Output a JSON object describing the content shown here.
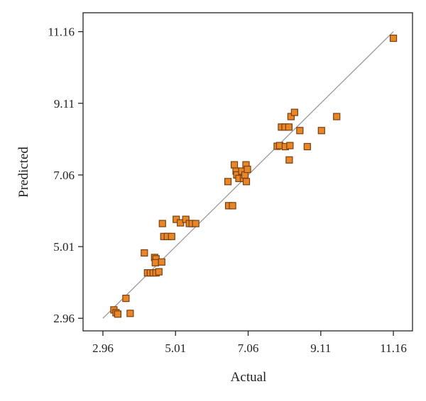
{
  "chart_data": {
    "type": "scatter",
    "xlabel": "Actual",
    "ylabel": "Predicted",
    "xlim": [
      2.4,
      11.7
    ],
    "ylim": [
      2.6,
      11.7
    ],
    "xticks": [
      "2.96",
      "5.01",
      "7.06",
      "9.11",
      "11.16"
    ],
    "yticks": [
      "2.96",
      "5.01",
      "7.06",
      "9.11",
      "11.16"
    ],
    "grid": false,
    "fit_line": {
      "x": [
        2.96,
        11.16
      ],
      "y": [
        2.96,
        11.16
      ]
    },
    "points": [
      {
        "x": 3.27,
        "y": 3.2
      },
      {
        "x": 3.33,
        "y": 3.12
      },
      {
        "x": 3.38,
        "y": 3.08
      },
      {
        "x": 3.61,
        "y": 3.53
      },
      {
        "x": 3.73,
        "y": 3.1
      },
      {
        "x": 4.13,
        "y": 4.83
      },
      {
        "x": 4.22,
        "y": 4.26
      },
      {
        "x": 4.3,
        "y": 4.26
      },
      {
        "x": 4.38,
        "y": 4.26
      },
      {
        "x": 4.46,
        "y": 4.26
      },
      {
        "x": 4.54,
        "y": 4.29
      },
      {
        "x": 4.42,
        "y": 4.7
      },
      {
        "x": 4.46,
        "y": 4.66
      },
      {
        "x": 4.44,
        "y": 4.55
      },
      {
        "x": 4.62,
        "y": 4.57
      },
      {
        "x": 4.64,
        "y": 5.67
      },
      {
        "x": 4.68,
        "y": 5.3
      },
      {
        "x": 4.78,
        "y": 5.3
      },
      {
        "x": 4.9,
        "y": 5.3
      },
      {
        "x": 5.03,
        "y": 5.79
      },
      {
        "x": 5.15,
        "y": 5.69
      },
      {
        "x": 5.3,
        "y": 5.79
      },
      {
        "x": 5.4,
        "y": 5.67
      },
      {
        "x": 5.48,
        "y": 5.67
      },
      {
        "x": 5.58,
        "y": 5.67
      },
      {
        "x": 6.49,
        "y": 6.87
      },
      {
        "x": 6.51,
        "y": 6.18
      },
      {
        "x": 6.62,
        "y": 6.18
      },
      {
        "x": 6.67,
        "y": 7.35
      },
      {
        "x": 6.72,
        "y": 7.17
      },
      {
        "x": 6.74,
        "y": 7.06
      },
      {
        "x": 6.8,
        "y": 6.96
      },
      {
        "x": 6.88,
        "y": 7.17
      },
      {
        "x": 6.93,
        "y": 6.96
      },
      {
        "x": 6.97,
        "y": 7.06
      },
      {
        "x": 7.0,
        "y": 7.35
      },
      {
        "x": 7.01,
        "y": 6.87
      },
      {
        "x": 7.04,
        "y": 7.22
      },
      {
        "x": 7.88,
        "y": 7.88
      },
      {
        "x": 7.95,
        "y": 7.9
      },
      {
        "x": 8.0,
        "y": 8.43
      },
      {
        "x": 8.1,
        "y": 8.43
      },
      {
        "x": 8.11,
        "y": 7.87
      },
      {
        "x": 8.21,
        "y": 8.43
      },
      {
        "x": 8.24,
        "y": 7.9
      },
      {
        "x": 8.22,
        "y": 7.49
      },
      {
        "x": 8.27,
        "y": 8.73
      },
      {
        "x": 8.37,
        "y": 8.85
      },
      {
        "x": 8.52,
        "y": 8.33
      },
      {
        "x": 8.73,
        "y": 7.87
      },
      {
        "x": 9.13,
        "y": 8.33
      },
      {
        "x": 9.56,
        "y": 8.73
      },
      {
        "x": 11.16,
        "y": 10.97
      }
    ]
  }
}
